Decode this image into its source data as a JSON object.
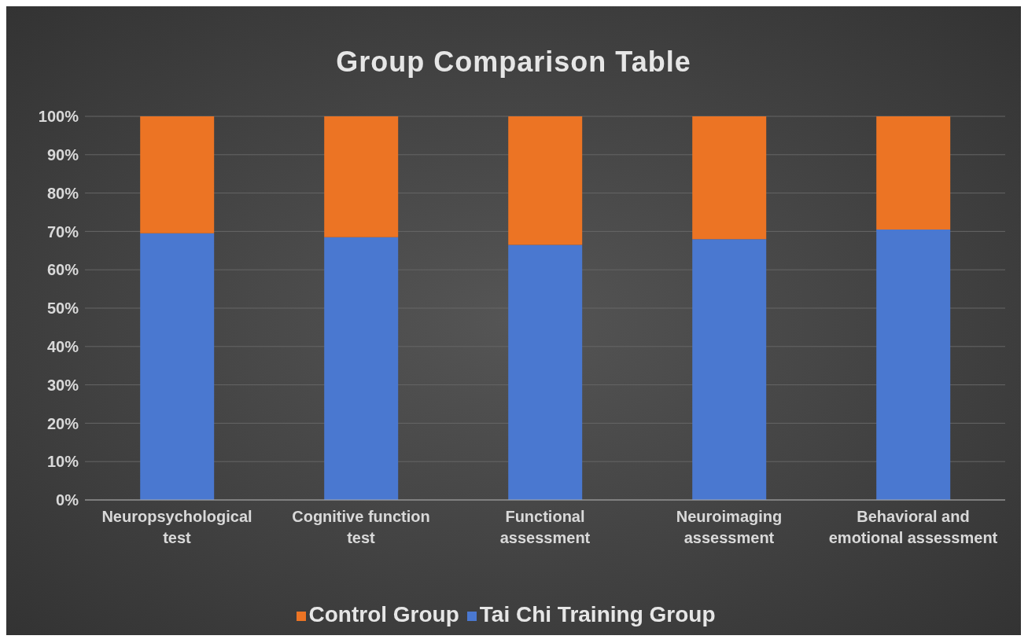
{
  "chart_data": {
    "type": "bar",
    "title": "Group Comparison Table",
    "stacked": true,
    "categories": [
      "Neuropsychological test",
      "Cognitive function test",
      "Functional assessment",
      "Neuroimaging assessment",
      "Behavioral and emotional assessment"
    ],
    "series": [
      {
        "name": "Tai Chi Training Group",
        "color": "#4a78d0",
        "values": [
          69.5,
          68.5,
          66.5,
          68,
          70.5
        ]
      },
      {
        "name": "Control Group",
        "color": "#ec7424",
        "values": [
          30.5,
          31.5,
          33.5,
          32,
          29.5
        ]
      }
    ],
    "ylim": [
      0,
      100
    ],
    "yticks": [
      {
        "value": 0,
        "label": "0%"
      },
      {
        "value": 10,
        "label": "10%"
      },
      {
        "value": 20,
        "label": "20%"
      },
      {
        "value": 30,
        "label": "30%"
      },
      {
        "value": 40,
        "label": "40%"
      },
      {
        "value": 50,
        "label": "50%"
      },
      {
        "value": 60,
        "label": "60%"
      },
      {
        "value": 70,
        "label": "70%"
      },
      {
        "value": 80,
        "label": "80%"
      },
      {
        "value": 90,
        "label": "90%"
      },
      {
        "value": 100,
        "label": "100%"
      }
    ],
    "grid": "y",
    "legend": "bottom"
  }
}
